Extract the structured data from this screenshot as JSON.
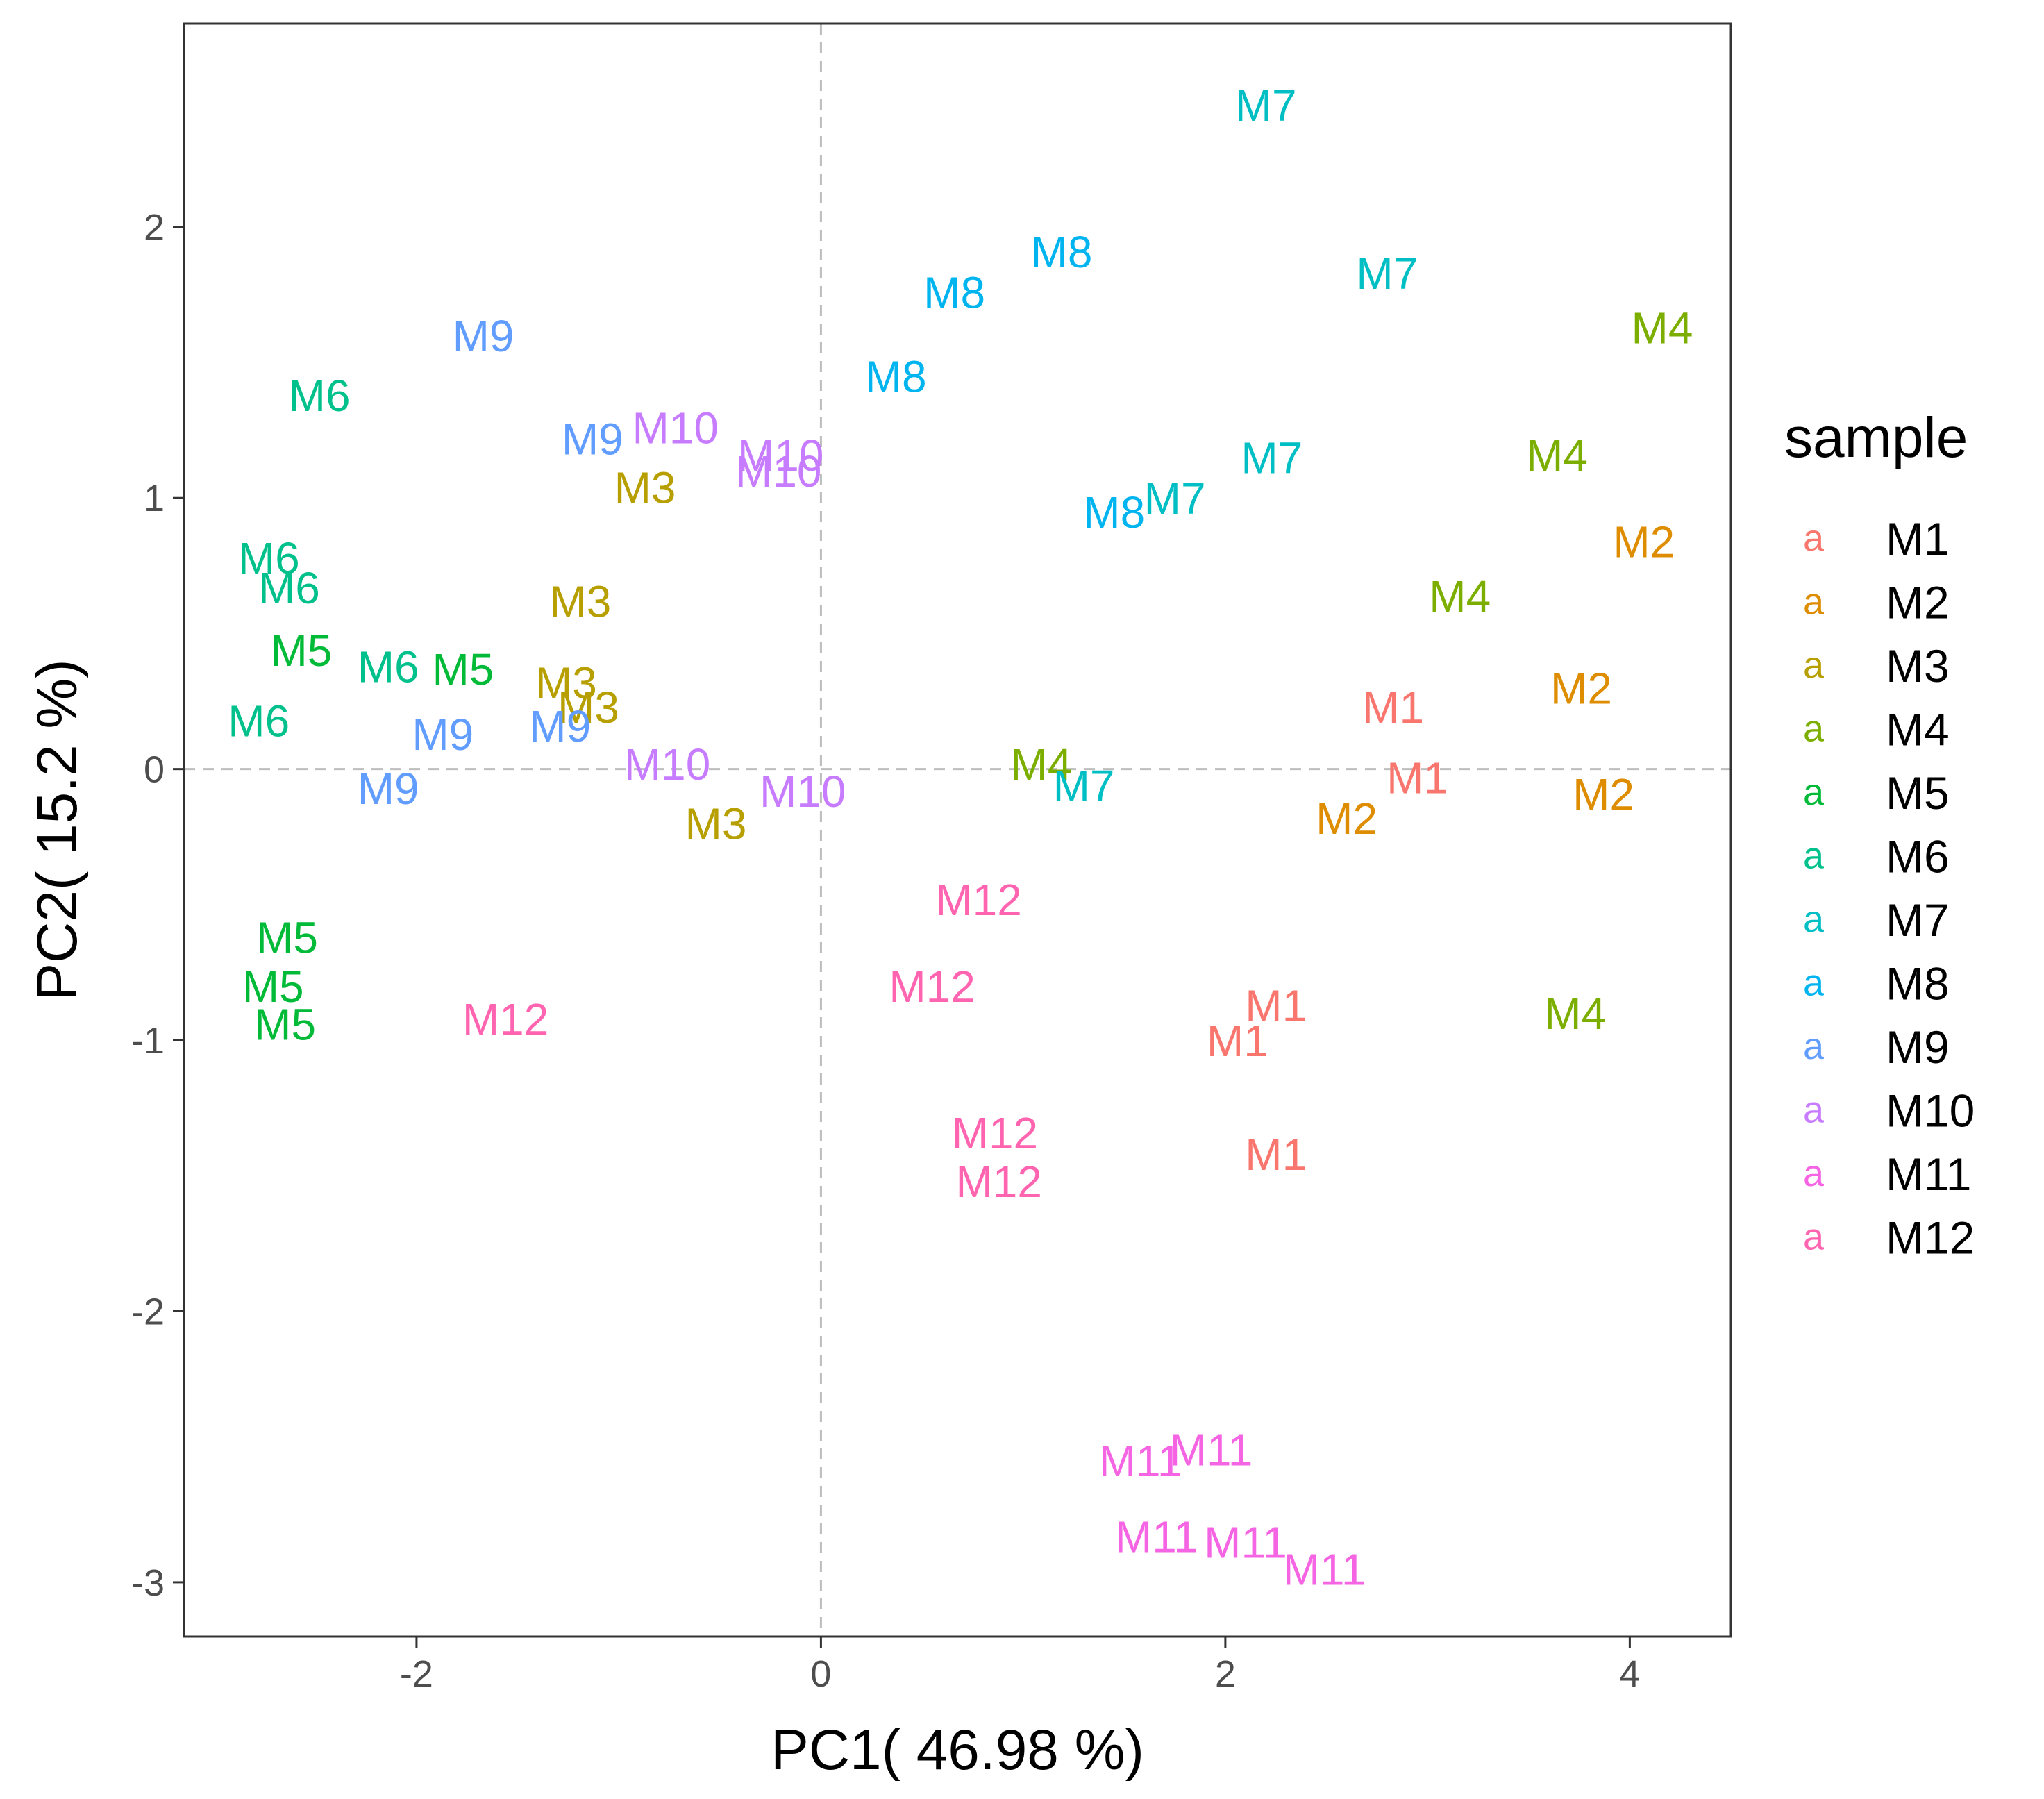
{
  "chart_data": {
    "type": "scatter",
    "title": "",
    "xlabel": "PC1( 46.98 %)",
    "ylabel": "PC2( 15.2 %)",
    "xlim": [
      -3.15,
      4.5
    ],
    "ylim": [
      -3.2,
      2.75
    ],
    "xticks": [
      -2,
      0,
      2,
      4
    ],
    "yticks": [
      -3,
      -2,
      -1,
      0,
      1,
      2
    ],
    "xtick_labels": [
      "-2",
      "0",
      "2",
      "4"
    ],
    "ytick_labels": [
      "-3",
      "-2",
      "-1",
      "0",
      "1",
      "2"
    ],
    "reference_lines": {
      "x": 0,
      "y": 0,
      "style": "dashed"
    },
    "grid": false,
    "legend": {
      "title": "sample",
      "position": "right",
      "key_glyph": "a",
      "entries": [
        {
          "label": "M1",
          "color": "#F8766D"
        },
        {
          "label": "M2",
          "color": "#DE8C00"
        },
        {
          "label": "M3",
          "color": "#B79F00"
        },
        {
          "label": "M4",
          "color": "#7CAE00"
        },
        {
          "label": "M5",
          "color": "#00BA38"
        },
        {
          "label": "M6",
          "color": "#00C08B"
        },
        {
          "label": "M7",
          "color": "#00BFC4"
        },
        {
          "label": "M8",
          "color": "#00B4F0"
        },
        {
          "label": "M9",
          "color": "#619CFF"
        },
        {
          "label": "M10",
          "color": "#C77CFF"
        },
        {
          "label": "M11",
          "color": "#F564E3"
        },
        {
          "label": "M12",
          "color": "#FF64B0"
        }
      ]
    },
    "series": [
      {
        "name": "M1",
        "points": [
          [
            2.83,
            0.23
          ],
          [
            2.95,
            -0.03
          ],
          [
            2.25,
            -0.87
          ],
          [
            2.06,
            -1.0
          ],
          [
            2.25,
            -1.42
          ]
        ]
      },
      {
        "name": "M2",
        "points": [
          [
            4.07,
            0.84
          ],
          [
            3.76,
            0.3
          ],
          [
            3.87,
            -0.09
          ],
          [
            2.6,
            -0.18
          ]
        ]
      },
      {
        "name": "M3",
        "points": [
          [
            -0.87,
            1.04
          ],
          [
            -1.19,
            0.62
          ],
          [
            -1.26,
            0.32
          ],
          [
            -1.15,
            0.23
          ],
          [
            -0.52,
            -0.2
          ]
        ]
      },
      {
        "name": "M4",
        "points": [
          [
            4.16,
            1.63
          ],
          [
            3.64,
            1.16
          ],
          [
            3.16,
            0.64
          ],
          [
            1.09,
            0.02
          ],
          [
            3.73,
            -0.9
          ]
        ]
      },
      {
        "name": "M5",
        "points": [
          [
            -2.57,
            0.44
          ],
          [
            -1.77,
            0.37
          ],
          [
            -2.64,
            -0.62
          ],
          [
            -2.71,
            -0.8
          ],
          [
            -2.65,
            -0.94
          ]
        ]
      },
      {
        "name": "M6",
        "points": [
          [
            -2.48,
            1.38
          ],
          [
            -2.73,
            0.78
          ],
          [
            -2.63,
            0.67
          ],
          [
            -2.14,
            0.38
          ],
          [
            -2.78,
            0.18
          ]
        ]
      },
      {
        "name": "M7",
        "points": [
          [
            2.2,
            2.45
          ],
          [
            2.8,
            1.83
          ],
          [
            2.23,
            1.15
          ],
          [
            1.75,
            1.0
          ],
          [
            1.3,
            -0.06
          ]
        ]
      },
      {
        "name": "M8",
        "points": [
          [
            1.19,
            1.91
          ],
          [
            0.66,
            1.76
          ],
          [
            0.37,
            1.45
          ],
          [
            1.45,
            0.95
          ]
        ]
      },
      {
        "name": "M9",
        "points": [
          [
            -1.67,
            1.6
          ],
          [
            -1.13,
            1.22
          ],
          [
            -1.87,
            0.13
          ],
          [
            -1.29,
            0.16
          ],
          [
            -2.14,
            -0.07
          ]
        ]
      },
      {
        "name": "M10",
        "points": [
          [
            -0.72,
            1.26
          ],
          [
            -0.2,
            1.16
          ],
          [
            -0.21,
            1.1
          ],
          [
            -0.76,
            0.02
          ],
          [
            -0.09,
            -0.08
          ]
        ]
      },
      {
        "name": "M11",
        "points": [
          [
            1.93,
            -2.51
          ],
          [
            1.58,
            -2.55
          ],
          [
            1.66,
            -2.83
          ],
          [
            2.1,
            -2.85
          ],
          [
            2.49,
            -2.95
          ]
        ]
      },
      {
        "name": "M12",
        "points": [
          [
            0.78,
            -0.48
          ],
          [
            0.55,
            -0.8
          ],
          [
            -1.56,
            -0.92
          ],
          [
            0.86,
            -1.34
          ],
          [
            0.88,
            -1.52
          ]
        ]
      }
    ]
  }
}
